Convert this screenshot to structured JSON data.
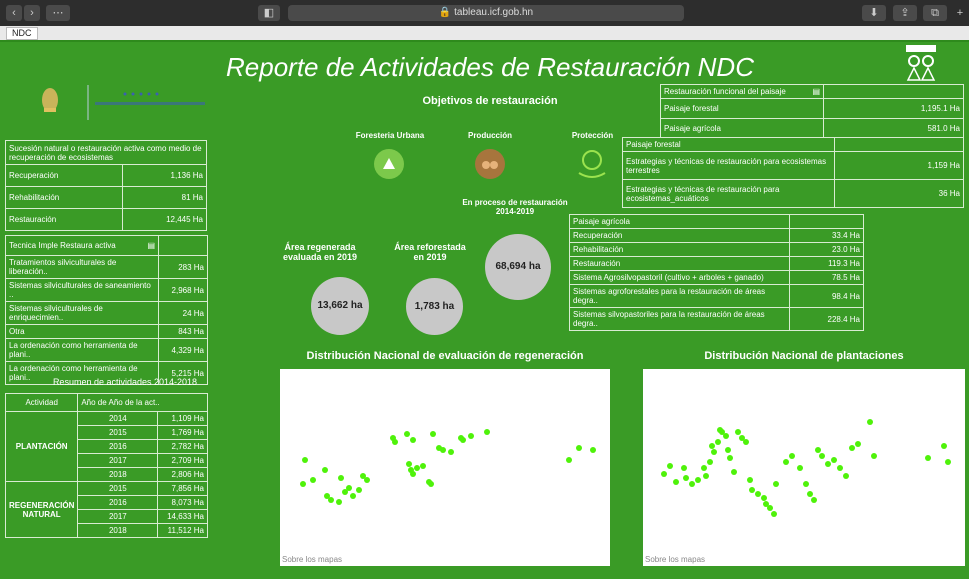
{
  "browser": {
    "url": "tableau.icf.gob.hn",
    "tab": "NDC"
  },
  "title": "Reporte de Actividades de Restauración NDC",
  "objetivos_label": "Objetivos de restauración",
  "categorias": [
    "Foresteria Urbana",
    "Producción",
    "Protección"
  ],
  "proceso": {
    "label": "En proceso de restauración 2014-2019",
    "value": "68,694 ha"
  },
  "regenerada": {
    "label": "Área regenerada evaluada en 2019",
    "value": "13,662 ha"
  },
  "reforestada": {
    "label": "Área reforestada en 2019",
    "value": "1,783 ha"
  },
  "sucesion": {
    "header": "Sucesión natural o restauración activa como medio de recuperación de ecosistemas",
    "rows": [
      [
        "Recuperación",
        "1,136 Ha"
      ],
      [
        "Rehabilitación",
        "81 Ha"
      ],
      [
        "Restauración",
        "12,445 Ha"
      ]
    ]
  },
  "tecnica": {
    "header": "Tecnica Imple Restaura activa",
    "rows": [
      [
        "Tratamientos silviculturales de liberación..",
        "283 Ha"
      ],
      [
        "Sistemas silviculturales de saneamiento ..",
        "2,968 Ha"
      ],
      [
        "Sistemas silviculturales de enriquecimien..",
        "24 Ha"
      ],
      [
        "Otra",
        "843 Ha"
      ],
      [
        "La ordenación como herramienta de plani..",
        "4,329 Ha"
      ],
      [
        "La ordenación como herramienta de plani..",
        "5,215 Ha"
      ]
    ]
  },
  "resumen": {
    "title": "Resumen de actividades 2014-2018",
    "col1": "Actividad",
    "col2": "Año de Año de la act..",
    "groups": [
      {
        "name": "PLANTACIÓN",
        "rows": [
          [
            "2014",
            "1,109 Ha"
          ],
          [
            "2015",
            "1,769 Ha"
          ],
          [
            "2016",
            "2,782 Ha"
          ],
          [
            "2017",
            "2,709 Ha"
          ],
          [
            "2018",
            "2,806 Ha"
          ]
        ]
      },
      {
        "name": "REGENERACIÓN NATURAL",
        "rows": [
          [
            "2015",
            "7,856 Ha"
          ],
          [
            "2016",
            "8,073 Ha"
          ],
          [
            "2017",
            "14,633 Ha"
          ],
          [
            "2018",
            "11,512 Ha"
          ]
        ]
      }
    ]
  },
  "funcional": {
    "header": "Restauración funcional del paisaje",
    "rows": [
      [
        "Paisaje forestal",
        "1,195.1 Ha"
      ],
      [
        "Paisaje agrícola",
        "581.0 Ha"
      ]
    ]
  },
  "forestal": {
    "header": "Paisaje forestal",
    "rows": [
      [
        "Estrategias y técnicas de restauración para ecosistemas terrestres",
        "1,159 Ha"
      ],
      [
        "Estrategias y técnicas de restauración para ecosistemas_acuáticos",
        "36 Ha"
      ]
    ]
  },
  "agricola": {
    "header": "Paisaje agrícola",
    "rows": [
      [
        "Recuperación",
        "33.4 Ha"
      ],
      [
        "Rehabilitación",
        "23.0 Ha"
      ],
      [
        "Restauración",
        "119.3 Ha"
      ],
      [
        "Sistema Agrosilvopastoril (cultivo + arboles + ganado)",
        "78.5 Ha"
      ],
      [
        "Sistemas agroforestales para la restauración de áreas degra..",
        "98.4 Ha"
      ],
      [
        "Sistemas silvopastoriles para la restauración de áreas degra..",
        "228.4 Ha"
      ]
    ]
  },
  "map1": {
    "title": "Distribución Nacional de evaluación de regeneración",
    "footer": "Sobre los mapas"
  },
  "map2": {
    "title": "Distribución Nacional de plantaciones",
    "footer": "Sobre los mapas"
  },
  "colors": {
    "background": "#3a9b26",
    "dot": "#4ff20a",
    "circle": "#c8c8c8"
  }
}
